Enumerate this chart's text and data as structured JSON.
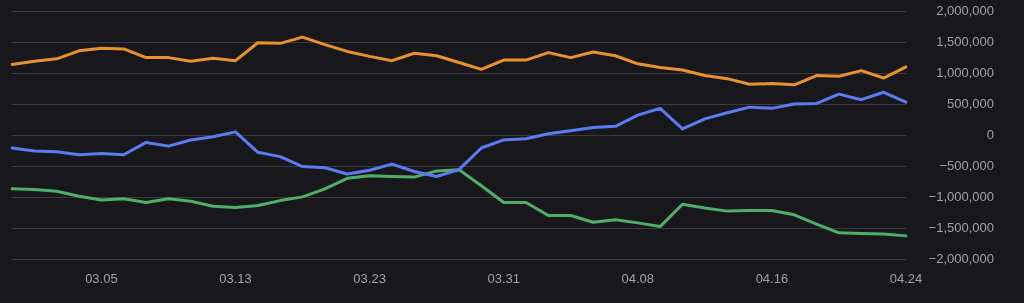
{
  "chart_data": {
    "type": "line",
    "categories": [
      null,
      null,
      null,
      null,
      "03.05",
      null,
      null,
      null,
      null,
      null,
      "03.13",
      null,
      null,
      null,
      null,
      null,
      "03.23",
      null,
      null,
      null,
      null,
      null,
      "03.31",
      null,
      null,
      null,
      null,
      null,
      "04.08",
      null,
      null,
      null,
      null,
      null,
      "04.16",
      null,
      null,
      null,
      null,
      null,
      "04.24"
    ],
    "series": [
      {
        "color": "#e8912d",
        "values": [
          1150000,
          1200000,
          1240000,
          1370000,
          1410000,
          1400000,
          1260000,
          1260000,
          1200000,
          1250000,
          1210000,
          1500000,
          1490000,
          1590000,
          1470000,
          1360000,
          1280000,
          1210000,
          1330000,
          1290000,
          1180000,
          1070000,
          1220000,
          1220000,
          1340000,
          1260000,
          1350000,
          1290000,
          1160000,
          1100000,
          1060000,
          970000,
          920000,
          830000,
          840000,
          820000,
          970000,
          960000,
          1050000,
          930000,
          1110000
        ]
      },
      {
        "color": "#5b7cf0",
        "values": [
          -200000,
          -250000,
          -260000,
          -310000,
          -290000,
          -310000,
          -110000,
          -170000,
          -70000,
          -20000,
          60000,
          -270000,
          -340000,
          -500000,
          -520000,
          -620000,
          -560000,
          -460000,
          -580000,
          -660000,
          -550000,
          -200000,
          -70000,
          -50000,
          30000,
          80000,
          130000,
          150000,
          330000,
          440000,
          110000,
          270000,
          370000,
          460000,
          440000,
          510000,
          520000,
          670000,
          580000,
          700000,
          540000
        ]
      },
      {
        "color": "#4fae68",
        "values": [
          -860000,
          -870000,
          -900000,
          -980000,
          -1040000,
          -1020000,
          -1080000,
          -1020000,
          -1060000,
          -1140000,
          -1160000,
          -1130000,
          -1050000,
          -990000,
          -860000,
          -690000,
          -650000,
          -660000,
          -670000,
          -570000,
          -550000,
          -810000,
          -1080000,
          -1080000,
          -1290000,
          -1290000,
          -1400000,
          -1360000,
          -1410000,
          -1470000,
          -1110000,
          -1170000,
          -1220000,
          -1210000,
          -1210000,
          -1280000,
          -1430000,
          -1570000,
          -1580000,
          -1590000,
          -1620000
        ]
      }
    ],
    "ylim": [
      -2000000,
      2000000
    ],
    "yticks": [
      {
        "value": -2000000,
        "label": "−2,000,000"
      },
      {
        "value": -1500000,
        "label": "−1,500,000"
      },
      {
        "value": -1000000,
        "label": "−1,000,000"
      },
      {
        "value": -500000,
        "label": "−500,000"
      },
      0,
      {
        "value": 500000,
        "label": "500,000"
      },
      {
        "value": 1000000,
        "label": "1,000,000"
      },
      {
        "value": 1500000,
        "label": "1,500,000"
      },
      {
        "value": 2000000,
        "label": "2,000,000"
      }
    ],
    "grid": "y",
    "legend": false,
    "marker": "none",
    "line_style": "solid"
  }
}
